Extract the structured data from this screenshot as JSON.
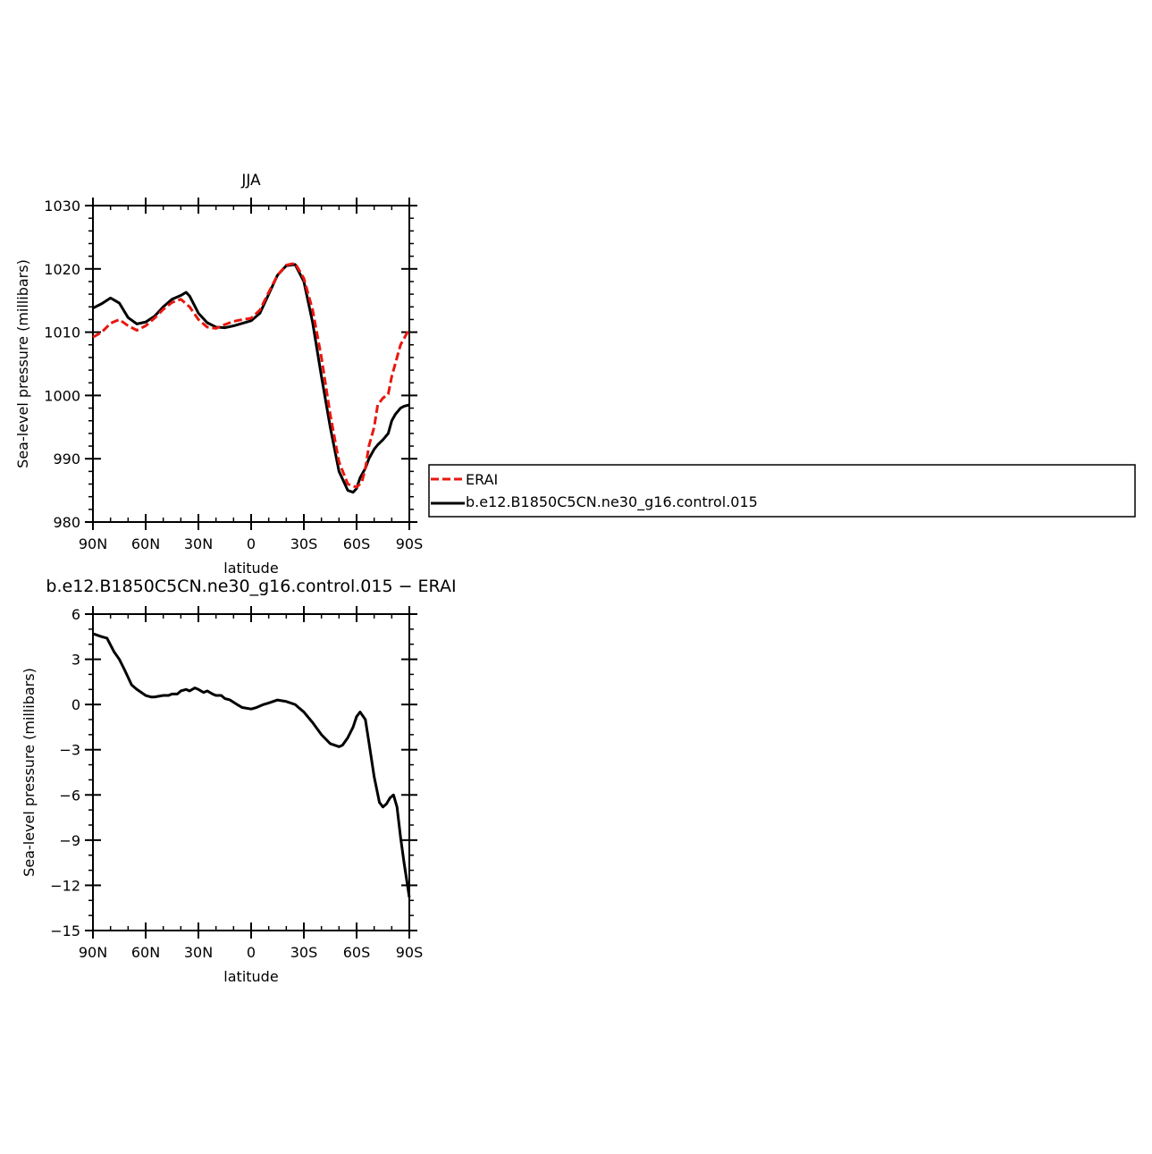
{
  "chart_data": [
    {
      "type": "line",
      "title": "JJA",
      "xlabel": "latitude",
      "ylabel": "Sea-level pressure (millibars)",
      "xlim": [
        -90,
        90
      ],
      "ylim": [
        980,
        1030
      ],
      "x_ticks": [
        -90,
        -60,
        -30,
        0,
        30,
        60,
        90
      ],
      "x_tick_labels": [
        "90N",
        "60N",
        "30N",
        "0",
        "30S",
        "60S",
        "90S"
      ],
      "y_ticks": [
        980,
        990,
        1000,
        1010,
        1020,
        1030
      ],
      "y_tick_labels": [
        "980",
        "990",
        "1000",
        "1010",
        "1020",
        "1030"
      ],
      "grid": false,
      "legend": {
        "position": "right",
        "entries": [
          "ERAI",
          "b.e12.B1850C5CN.ne30_g16.control.015"
        ]
      },
      "series": [
        {
          "name": "ERAI",
          "color": "#e8170f",
          "dash": "dashed",
          "x": [
            -90,
            -85,
            -80,
            -75,
            -70,
            -65,
            -60,
            -55,
            -50,
            -45,
            -40,
            -35,
            -30,
            -25,
            -20,
            -15,
            -10,
            -5,
            0,
            5,
            10,
            15,
            20,
            25,
            30,
            35,
            40,
            45,
            50,
            55,
            60,
            63,
            65,
            67,
            70,
            72,
            75,
            78,
            80,
            82,
            85,
            87,
            90
          ],
          "y": [
            1009.2,
            1010.0,
            1011.4,
            1012.0,
            1011.0,
            1010.3,
            1011.0,
            1012.2,
            1013.6,
            1014.7,
            1015.2,
            1014.0,
            1012.0,
            1010.8,
            1010.6,
            1011.2,
            1011.7,
            1012.0,
            1012.2,
            1013.5,
            1016.3,
            1019.0,
            1020.6,
            1020.9,
            1018.5,
            1013.5,
            1006.0,
            997.0,
            989.5,
            986.0,
            985.5,
            986.3,
            988.5,
            992.0,
            995.0,
            998.5,
            999.6,
            1000.2,
            1003.0,
            1005.0,
            1008.0,
            1009.0,
            1010.5
          ]
        },
        {
          "name": "b.e12.B1850C5CN.ne30_g16.control.015",
          "color": "#000000",
          "dash": "solid",
          "x": [
            -90,
            -85,
            -80,
            -75,
            -70,
            -65,
            -60,
            -55,
            -50,
            -45,
            -40,
            -37,
            -35,
            -30,
            -25,
            -20,
            -15,
            -10,
            -5,
            0,
            5,
            10,
            15,
            20,
            25,
            30,
            35,
            40,
            45,
            50,
            55,
            58,
            60,
            62,
            65,
            67,
            70,
            72,
            75,
            78,
            80,
            82,
            85,
            87,
            90
          ],
          "y": [
            1013.8,
            1014.5,
            1015.4,
            1014.6,
            1012.3,
            1011.3,
            1011.6,
            1012.5,
            1014.0,
            1015.2,
            1015.8,
            1016.3,
            1015.7,
            1013.0,
            1011.5,
            1010.8,
            1010.7,
            1011.0,
            1011.4,
            1011.8,
            1013.0,
            1016.0,
            1019.0,
            1020.5,
            1020.7,
            1018.0,
            1011.5,
            1003.0,
            995.0,
            988.0,
            985.0,
            984.7,
            985.3,
            987.0,
            988.5,
            990.0,
            991.5,
            992.2,
            993.0,
            994.0,
            996.0,
            997.0,
            998.0,
            998.3,
            998.5
          ]
        }
      ]
    },
    {
      "type": "line",
      "title": "b.e12.B1850C5CN.ne30_g16.control.015 − ERAI",
      "xlabel": "latitude",
      "ylabel": "Sea-level pressure (millibars)",
      "xlim": [
        -90,
        90
      ],
      "ylim": [
        -15,
        6
      ],
      "x_ticks": [
        -90,
        -60,
        -30,
        0,
        30,
        60,
        90
      ],
      "x_tick_labels": [
        "90N",
        "60N",
        "30N",
        "0",
        "30S",
        "60S",
        "90S"
      ],
      "y_ticks": [
        -15,
        -12,
        -9,
        -6,
        -3,
        0,
        3,
        6
      ],
      "y_tick_labels": [
        "−15",
        "−12",
        "−9",
        "−6",
        "−3",
        "0",
        "3",
        "6"
      ],
      "grid": false,
      "series": [
        {
          "color": "#000000",
          "dash": "solid",
          "x": [
            -90,
            -85,
            -82,
            -78,
            -75,
            -72,
            -68,
            -65,
            -60,
            -57,
            -55,
            -50,
            -47,
            -45,
            -42,
            -40,
            -37,
            -35,
            -32,
            -30,
            -27,
            -25,
            -22,
            -20,
            -17,
            -15,
            -12,
            -8,
            -5,
            0,
            3,
            7,
            10,
            15,
            20,
            25,
            30,
            35,
            40,
            45,
            50,
            52,
            55,
            58,
            60,
            62,
            65,
            67,
            70,
            73,
            75,
            77,
            79,
            81,
            83,
            85,
            87,
            90
          ],
          "y": [
            4.7,
            4.5,
            4.4,
            3.5,
            3.0,
            2.3,
            1.3,
            1.0,
            0.6,
            0.5,
            0.5,
            0.6,
            0.6,
            0.7,
            0.7,
            0.9,
            1.0,
            0.9,
            1.1,
            1.0,
            0.8,
            0.9,
            0.7,
            0.6,
            0.6,
            0.4,
            0.3,
            0.0,
            -0.2,
            -0.3,
            -0.2,
            0.0,
            0.1,
            0.3,
            0.2,
            0.0,
            -0.5,
            -1.2,
            -2.0,
            -2.6,
            -2.8,
            -2.7,
            -2.2,
            -1.5,
            -0.8,
            -0.5,
            -1.0,
            -2.5,
            -4.8,
            -6.5,
            -6.8,
            -6.6,
            -6.2,
            -6.0,
            -6.8,
            -8.8,
            -10.5,
            -12.8
          ]
        }
      ]
    }
  ]
}
